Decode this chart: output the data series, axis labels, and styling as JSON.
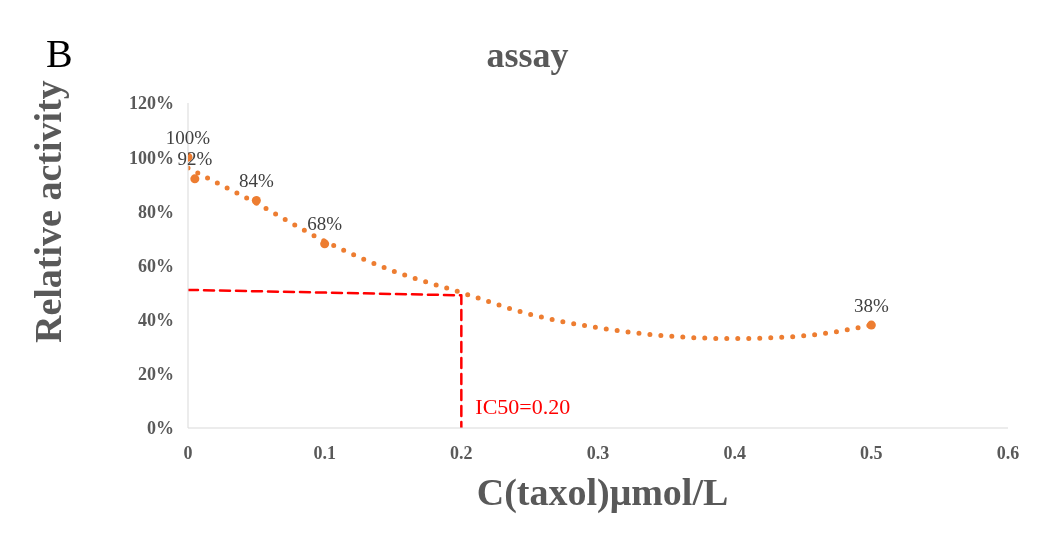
{
  "chart_data": {
    "type": "scatter",
    "title": "assay",
    "xlabel": "C(taxol)μmol/L",
    "ylabel": "Relative activity",
    "annotations": [
      "B",
      {
        "text": "IC50=0.20",
        "x": 0.2,
        "y": 8
      }
    ],
    "xlim": [
      0,
      0.6
    ],
    "xticks": [
      0,
      0.1,
      0.2,
      0.3,
      0.4,
      0.5,
      0.6
    ],
    "ylim": [
      0,
      120
    ],
    "yticks": [
      {
        "value": 0,
        "label": "0%"
      },
      {
        "value": 20,
        "label": "20%"
      },
      {
        "value": 40,
        "label": "40%"
      },
      {
        "value": 60,
        "label": "60%"
      },
      {
        "value": 80,
        "label": "80%"
      },
      {
        "value": 100,
        "label": "100%"
      },
      {
        "value": 120,
        "label": "120%"
      }
    ],
    "grid": false,
    "legend": false,
    "marker": "circle",
    "series": [
      {
        "type": "line",
        "color": "#ed7d31",
        "line_style": "dotted",
        "marker": "none",
        "x": [
          0,
          0.05,
          0.1,
          0.15,
          0.2,
          0.25,
          0.3,
          0.35,
          0.4,
          0.45,
          0.5
        ],
        "values": [
          96,
          83,
          69,
          58,
          50,
          42,
          37,
          34,
          33,
          34,
          38
        ]
      },
      {
        "type": "line",
        "color": "#ff0000",
        "line_style": "dashed",
        "marker": "none",
        "x": [
          0,
          0.2,
          0.2
        ],
        "values": [
          51,
          49,
          0
        ]
      },
      {
        "color": "#ed7d31",
        "x": [
          0,
          0.005,
          0.05,
          0.1,
          0.5
        ],
        "values": [
          100,
          92,
          84,
          68,
          38
        ],
        "value_labels": [
          "100%",
          "92%",
          "84%",
          "68%",
          "38%"
        ]
      }
    ]
  }
}
